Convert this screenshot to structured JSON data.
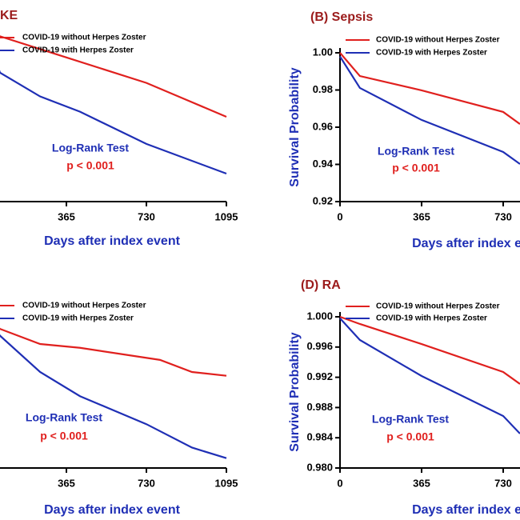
{
  "chart_data": [
    {
      "type": "line",
      "title": "KE",
      "x_label": "Days after index event",
      "annotations": [
        "Log-Rank Test",
        "p < 0.001"
      ],
      "xlim": [
        0,
        1095
      ],
      "xticks": [
        365,
        730,
        1095
      ],
      "ylim": [
        0.9,
        1.0
      ],
      "series": [
        {
          "name": "COVID-19 without Herpes Zoster",
          "color": "#e0201e",
          "x": [
            0,
            365,
            730,
            1095
          ],
          "values": [
            1.0,
            0.985,
            0.97,
            0.95
          ]
        },
        {
          "name": "COVID-19 with Herpes Zoster",
          "color": "#1f2fb5",
          "x": [
            0,
            62,
            245,
            427,
            730,
            1095
          ],
          "values": [
            1.0,
            0.976,
            0.962,
            0.953,
            0.934,
            0.9165
          ]
        }
      ]
    },
    {
      "type": "line",
      "title": "(B) Sepsis",
      "x_label": "Days after index event",
      "y_label": "Survival Probability",
      "annotations": [
        "Log-Rank Test",
        "p < 0.001"
      ],
      "xlim": [
        0,
        1095
      ],
      "xticks": [
        0,
        365,
        730
      ],
      "ylim": [
        0.92,
        1.0
      ],
      "yticks": [
        {
          "value": 0.92,
          "label": "0.92"
        },
        {
          "value": 0.94,
          "label": "0.94"
        },
        {
          "value": 0.96,
          "label": "0.96"
        },
        {
          "value": 0.98,
          "label": "0.98"
        },
        {
          "value": 1.0,
          "label": "1.00"
        }
      ],
      "series": [
        {
          "name": "COVID-19 without Herpes Zoster",
          "color": "#e0201e",
          "x": [
            0,
            89,
            365,
            730,
            805
          ],
          "values": [
            1.0,
            0.9875,
            0.9798,
            0.9682,
            0.9617
          ]
        },
        {
          "name": "COVID-19 with Herpes Zoster",
          "color": "#1f2fb5",
          "x": [
            0,
            89,
            365,
            730,
            805
          ],
          "values": [
            0.998,
            0.9811,
            0.9639,
            0.9467,
            0.9402
          ]
        }
      ]
    },
    {
      "type": "line",
      "title": "",
      "x_label": "Days after index event",
      "annotations": [
        "Log-Rank Test",
        "p < 0.001"
      ],
      "xlim": [
        0,
        1095
      ],
      "xticks": [
        365,
        730,
        1095
      ],
      "ylim": [
        0.98,
        1.0
      ],
      "series": [
        {
          "name": "COVID-19 without Herpes Zoster",
          "color": "#e0201e",
          "x": [
            0,
            62,
            245,
            427,
            792,
            938,
            1095
          ],
          "values": [
            1.0,
            0.9984,
            0.9964,
            0.9959,
            0.9943,
            0.9927,
            0.9922
          ]
        },
        {
          "name": "COVID-19 with Herpes Zoster",
          "color": "#1f2fb5",
          "x": [
            0,
            62,
            245,
            427,
            730,
            938,
            1095
          ],
          "values": [
            1.0,
            0.9975,
            0.9927,
            0.9895,
            0.9858,
            0.9827,
            0.9813
          ]
        }
      ]
    },
    {
      "type": "line",
      "title": "(D) RA",
      "x_label": "Days after index event",
      "y_label": "Survival Probability",
      "annotations": [
        "Log-Rank Test",
        "p < 0.001"
      ],
      "xlim": [
        0,
        1095
      ],
      "xticks": [
        0,
        365,
        730
      ],
      "ylim": [
        0.98,
        1.0
      ],
      "yticks": [
        {
          "value": 0.98,
          "label": "0.980"
        },
        {
          "value": 0.984,
          "label": "0.984"
        },
        {
          "value": 0.988,
          "label": "0.988"
        },
        {
          "value": 0.992,
          "label": "0.992"
        },
        {
          "value": 0.996,
          "label": "0.996"
        },
        {
          "value": 1.0,
          "label": "1.000"
        }
      ],
      "series": [
        {
          "name": "COVID-19 without Herpes Zoster",
          "color": "#e0201e",
          "x": [
            0,
            89,
            365,
            730,
            805
          ],
          "values": [
            1.0,
            0.99905,
            0.9964,
            0.9927,
            0.99111
          ]
        },
        {
          "name": "COVID-19 with Herpes Zoster",
          "color": "#1f2fb5",
          "x": [
            0,
            89,
            365,
            730,
            805
          ],
          "values": [
            0.9998,
            0.99693,
            0.99217,
            0.98688,
            0.98455
          ]
        }
      ]
    }
  ]
}
